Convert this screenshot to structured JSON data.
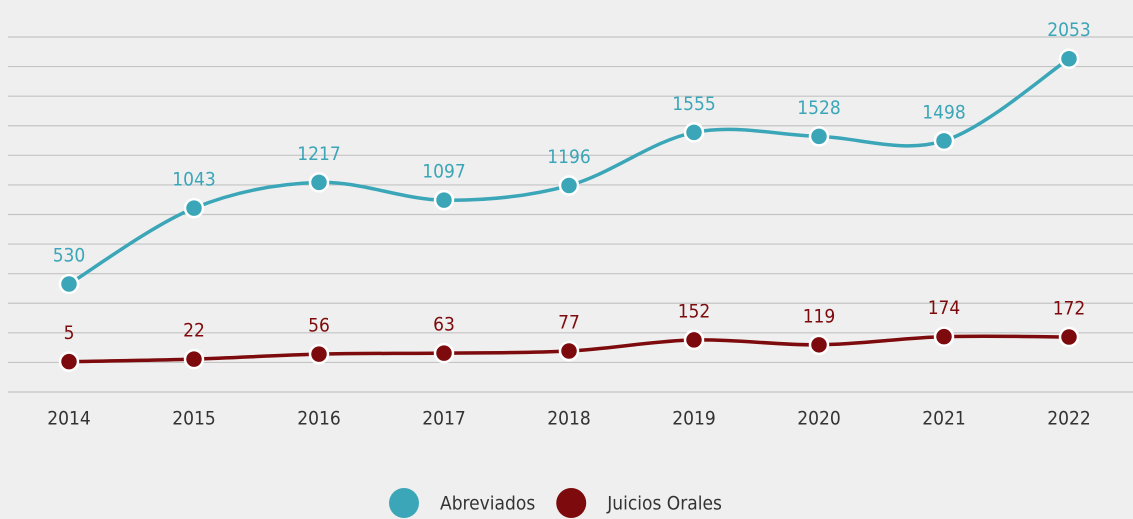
{
  "chart_data": {
    "type": "line",
    "categories": [
      "2014",
      "2015",
      "2016",
      "2017",
      "2018",
      "2019",
      "2020",
      "2021",
      "2022"
    ],
    "series": [
      {
        "name": "Abreviados",
        "color": "#3ba6b8",
        "values": [
          530,
          1043,
          1217,
          1097,
          1196,
          1555,
          1528,
          1498,
          2053
        ]
      },
      {
        "name": "Juicios Orales",
        "color": "#7d0a0c",
        "values": [
          5,
          22,
          56,
          63,
          77,
          152,
          119,
          174,
          172
        ]
      }
    ],
    "ylim": [
      -200,
      2200
    ],
    "yticks": [
      -200,
      0,
      200,
      400,
      600,
      800,
      1000,
      1200,
      1400,
      1600,
      1800,
      2000,
      2200
    ],
    "grid": true,
    "legend": "bottom"
  }
}
